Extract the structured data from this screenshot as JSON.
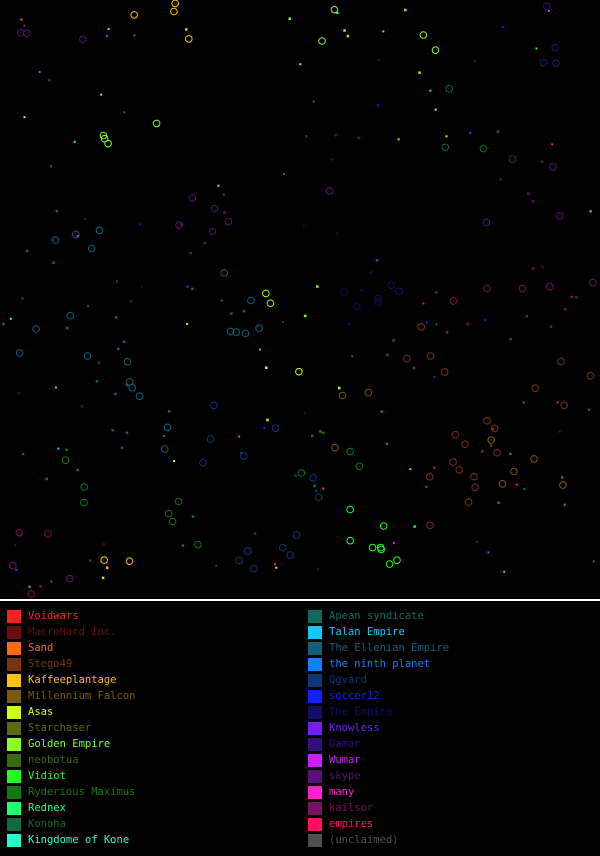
{
  "legend": {
    "left": [
      {
        "label": "Voidwars",
        "color": "#ff2020"
      },
      {
        "label": "MacroHard Inc.",
        "color": "#6b0d0d"
      },
      {
        "label": "Sand",
        "color": "#ff6a10"
      },
      {
        "label": "Stego49",
        "color": "#7a3410"
      },
      {
        "label": "Kaffeeplantage",
        "color": "#ffc010"
      },
      {
        "label": "Millennium Falcon",
        "color": "#7a5a10"
      },
      {
        "label": "Asas",
        "color": "#ccff10"
      },
      {
        "label": "Starchaser",
        "color": "#5a6a10"
      },
      {
        "label": "Golden Empire",
        "color": "#88ff20"
      },
      {
        "label": "neobotua",
        "color": "#3a6a10"
      },
      {
        "label": "Vidiot",
        "color": "#20ff20"
      },
      {
        "label": "Ryderious Maximus",
        "color": "#107a10"
      },
      {
        "label": "Rednex",
        "color": "#20ff70"
      },
      {
        "label": "Konoha",
        "color": "#106a3a"
      },
      {
        "label": "Kingdome of Kone",
        "color": "#20ffcc"
      }
    ],
    "right": [
      {
        "label": "Apean syndicate",
        "color": "#106a5a"
      },
      {
        "label": "Talan Empire",
        "color": "#10c8ff"
      },
      {
        "label": "The Ellenian Empire",
        "color": "#10607a"
      },
      {
        "label": "the ninth planet",
        "color": "#1080ff"
      },
      {
        "label": "Qgvard",
        "color": "#10367a"
      },
      {
        "label": "soccer12",
        "color": "#1020ff"
      },
      {
        "label": "The Empire",
        "color": "#10106a"
      },
      {
        "label": "Knowless",
        "color": "#7020ff"
      },
      {
        "label": "Damar",
        "color": "#30107a"
      },
      {
        "label": "Wumar",
        "color": "#c820ff"
      },
      {
        "label": "skype",
        "color": "#5a107a"
      },
      {
        "label": "many",
        "color": "#ff20d0"
      },
      {
        "label": "kailsor",
        "color": "#7a1060"
      },
      {
        "label": "empires",
        "color": "#ff1060"
      },
      {
        "label": "(unclaimed)",
        "color": "#505050"
      }
    ]
  }
}
